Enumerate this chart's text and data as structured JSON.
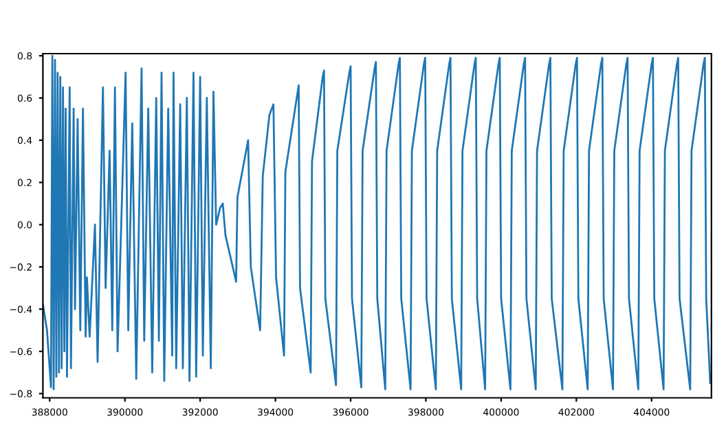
{
  "chart_data": {
    "type": "line",
    "xlim": [
      387820,
      405590
    ],
    "ylim": [
      -0.82,
      0.81
    ],
    "xticks": [
      388000,
      390000,
      392000,
      394000,
      396000,
      398000,
      400000,
      402000,
      404000
    ],
    "yticks": [
      {
        "value": -0.8,
        "label": "−0.8"
      },
      {
        "value": -0.6,
        "label": "−0.6"
      },
      {
        "value": -0.4,
        "label": "−0.4"
      },
      {
        "value": -0.2,
        "label": "−0.2"
      },
      {
        "value": 0.0,
        "label": "0.0"
      },
      {
        "value": 0.2,
        "label": "0.2"
      },
      {
        "value": 0.4,
        "label": "0.4"
      },
      {
        "value": 0.6,
        "label": "0.6"
      },
      {
        "value": 0.8,
        "label": "0.8"
      }
    ],
    "grid": false,
    "legend": false,
    "series": [
      {
        "color": "#1f77b4",
        "x": [
          387823,
          387929,
          388035,
          388071,
          388106,
          388142,
          388177,
          388212,
          388248,
          388283,
          388319,
          388354,
          388390,
          388425,
          388460,
          388531,
          388566,
          388637,
          388673,
          388743,
          388814,
          388885,
          388956,
          388991,
          389062,
          389204,
          389274,
          389416,
          389487,
          389593,
          389664,
          389735,
          389805,
          390018,
          390089,
          390195,
          390301,
          390443,
          390513,
          390620,
          390726,
          390832,
          390903,
          390974,
          391045,
          391151,
          391257,
          391292,
          391363,
          391469,
          391540,
          391646,
          391717,
          391823,
          391894,
          392000,
          392071,
          392177,
          392283,
          392354,
          392425,
          392531,
          392602,
          392673,
          392956,
          392991,
          393275,
          393346,
          393594,
          393664,
          393841,
          393948,
          394018,
          394230,
          394265,
          394584,
          394619,
          394655,
          394938,
          394973,
          395257,
          395292,
          395327,
          395611,
          395646,
          395965,
          396000,
          396036,
          396283,
          396318,
          396637,
          396672,
          396708,
          396920,
          396955,
          397274,
          397309,
          397345,
          397593,
          397628,
          397947,
          397982,
          398018,
          398265,
          398300,
          398619,
          398654,
          398690,
          398938,
          398973,
          399292,
          399327,
          399363,
          399575,
          399610,
          399929,
          399964,
          400000,
          400248,
          400283,
          400602,
          400637,
          400673,
          400920,
          400955,
          401274,
          401309,
          401345,
          401628,
          401663,
          401982,
          402017,
          402053,
          402301,
          402336,
          402655,
          402690,
          402726,
          402973,
          403008,
          403327,
          403362,
          403398,
          403646,
          403681,
          404000,
          404035,
          404071,
          404318,
          404353,
          404672,
          404707,
          404743,
          405026,
          405061,
          405380,
          405415,
          405451,
          405558
        ],
        "values": [
          -0.38,
          -0.5,
          -0.77,
          0.8,
          -0.78,
          0.78,
          -0.72,
          0.72,
          -0.7,
          0.7,
          -0.68,
          0.65,
          -0.6,
          0.55,
          -0.72,
          0.65,
          -0.68,
          0.55,
          -0.4,
          0.5,
          -0.5,
          0.55,
          -0.53,
          -0.25,
          -0.53,
          0.0,
          -0.65,
          0.65,
          -0.3,
          0.35,
          -0.5,
          0.65,
          -0.6,
          0.72,
          -0.5,
          0.48,
          -0.73,
          0.74,
          -0.55,
          0.55,
          -0.7,
          0.6,
          -0.55,
          0.72,
          -0.74,
          0.55,
          -0.62,
          0.72,
          -0.68,
          0.57,
          -0.68,
          0.6,
          -0.74,
          0.72,
          -0.72,
          0.7,
          -0.62,
          0.6,
          -0.68,
          0.63,
          0.0,
          0.08,
          0.1,
          -0.05,
          -0.27,
          0.13,
          0.4,
          -0.2,
          -0.5,
          0.23,
          0.52,
          0.57,
          -0.25,
          -0.62,
          0.25,
          0.62,
          0.66,
          -0.3,
          -0.7,
          0.3,
          0.7,
          0.73,
          -0.35,
          -0.76,
          0.35,
          0.72,
          0.75,
          -0.35,
          -0.77,
          0.35,
          0.74,
          0.77,
          -0.35,
          -0.78,
          0.35,
          0.76,
          0.79,
          -0.35,
          -0.78,
          0.35,
          0.76,
          0.79,
          -0.35,
          -0.78,
          0.35,
          0.76,
          0.79,
          -0.35,
          -0.78,
          0.35,
          0.76,
          0.79,
          -0.35,
          -0.78,
          0.35,
          0.76,
          0.79,
          -0.35,
          -0.78,
          0.35,
          0.76,
          0.79,
          -0.35,
          -0.78,
          0.35,
          0.76,
          0.79,
          -0.35,
          -0.78,
          0.35,
          0.76,
          0.79,
          -0.35,
          -0.78,
          0.35,
          0.76,
          0.79,
          -0.35,
          -0.78,
          0.35,
          0.76,
          0.79,
          -0.35,
          -0.78,
          0.35,
          0.76,
          0.79,
          -0.35,
          -0.78,
          0.35,
          0.76,
          0.79,
          -0.35,
          -0.78,
          0.35,
          0.76,
          0.79,
          -0.35,
          -0.75
        ]
      }
    ]
  }
}
